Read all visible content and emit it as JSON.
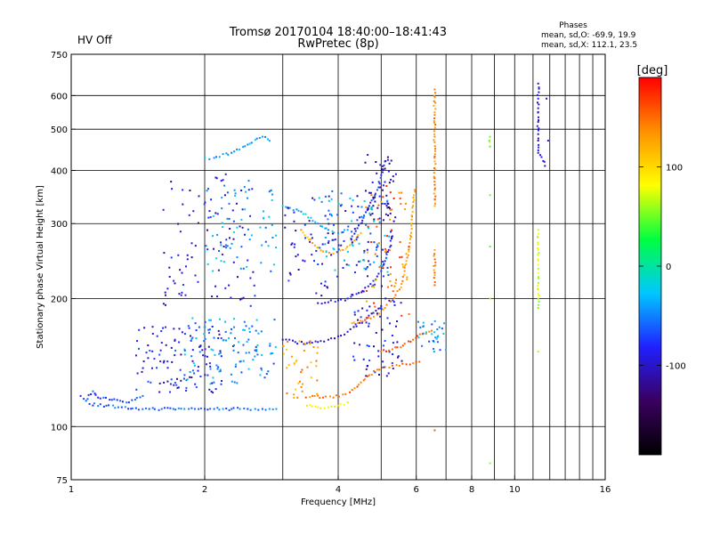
{
  "header": {
    "status": "HV Off",
    "status_color": "#d40000",
    "title": "Tromsø 20170104 18:40:00–18:41:43",
    "subtitle": "RwPretec (8p)",
    "phases": {
      "label": "Phases",
      "o_mode": "mean, sd,O: -69.9, 19.9",
      "x_mode": "mean, sd,X: 112.1, 23.5"
    }
  },
  "colorbar": {
    "unit": "[deg]",
    "ticks": [
      {
        "value": 100,
        "label": "100"
      },
      {
        "value": 0,
        "label": "0"
      },
      {
        "value": -100,
        "label": "-100"
      }
    ],
    "range": [
      -190,
      190
    ],
    "colormap": [
      "#000000",
      "#3a0060",
      "#2020ff",
      "#00c8ff",
      "#00ff40",
      "#ffff00",
      "#ff9000",
      "#ff0000"
    ]
  },
  "chart_data": {
    "type": "scatter",
    "xlabel": "Frequency [MHz]",
    "ylabel": "Stationary phase Virtual Height [km]",
    "xscale": "log",
    "yscale": "log",
    "xlim": [
      1,
      16
    ],
    "ylim": [
      75,
      750
    ],
    "x_ticks": [
      {
        "value": 1,
        "label": "1"
      },
      {
        "value": 2,
        "label": "2"
      },
      {
        "value": 4,
        "label": "4"
      },
      {
        "value": 6,
        "label": "6"
      },
      {
        "value": 8,
        "label": "8"
      },
      {
        "value": 10,
        "label": "10"
      },
      {
        "value": 16,
        "label": "16"
      }
    ],
    "y_ticks": [
      {
        "value": 75,
        "label": "75"
      },
      {
        "value": 100,
        "label": "100"
      },
      {
        "value": 200,
        "label": "200"
      },
      {
        "value": 300,
        "label": "300"
      },
      {
        "value": 400,
        "label": "400"
      },
      {
        "value": 500,
        "label": "500"
      },
      {
        "value": 600,
        "label": "600"
      },
      {
        "value": 750,
        "label": "750"
      }
    ],
    "grid_x": [
      2,
      3,
      4,
      5,
      6,
      7,
      8,
      9,
      10,
      11,
      12,
      13,
      14,
      15
    ],
    "grid_y": [
      100,
      200,
      300,
      400,
      500,
      600
    ],
    "grid": true,
    "traces": [
      {
        "name": "o-low-trace",
        "phase": -60,
        "points": [
          [
            1.1,
            113
          ],
          [
            1.2,
            112
          ],
          [
            1.3,
            111
          ],
          [
            1.4,
            110.5
          ],
          [
            1.5,
            110
          ],
          [
            1.6,
            110
          ],
          [
            1.7,
            110
          ],
          [
            1.8,
            110
          ],
          [
            1.9,
            110
          ],
          [
            2.0,
            110
          ],
          [
            2.1,
            110
          ],
          [
            2.2,
            110
          ],
          [
            2.3,
            110
          ],
          [
            2.4,
            110
          ],
          [
            2.5,
            110
          ],
          [
            2.6,
            110
          ],
          [
            2.7,
            110
          ],
          [
            2.8,
            110
          ],
          [
            2.9,
            110
          ]
        ]
      },
      {
        "name": "o-low-hook",
        "phase": -70,
        "points": [
          [
            1.05,
            118
          ],
          [
            1.08,
            115
          ],
          [
            1.12,
            121
          ],
          [
            1.15,
            117
          ],
          [
            1.25,
            116
          ],
          [
            1.35,
            114
          ],
          [
            1.45,
            118
          ]
        ]
      },
      {
        "name": "o-mid-trace",
        "phase": -100,
        "points": [
          [
            3.0,
            160
          ],
          [
            3.2,
            158
          ],
          [
            3.4,
            157
          ],
          [
            3.6,
            158
          ],
          [
            3.8,
            160
          ],
          [
            4.0,
            163
          ],
          [
            4.2,
            167
          ],
          [
            4.4,
            172
          ],
          [
            4.6,
            178
          ],
          [
            4.8,
            185
          ],
          [
            5.0,
            192
          ]
        ]
      },
      {
        "name": "o-f-trace",
        "phase": -90,
        "points": [
          [
            3.6,
            195
          ],
          [
            3.8,
            196
          ],
          [
            4.0,
            198
          ],
          [
            4.2,
            200
          ],
          [
            4.4,
            205
          ],
          [
            4.6,
            212
          ],
          [
            4.8,
            220
          ],
          [
            5.0,
            232
          ],
          [
            5.1,
            245
          ],
          [
            5.2,
            260
          ],
          [
            5.3,
            280
          ]
        ]
      },
      {
        "name": "o-upper-trace",
        "phase": -80,
        "points": [
          [
            4.3,
            280
          ],
          [
            4.5,
            300
          ],
          [
            4.7,
            330
          ],
          [
            4.9,
            360
          ],
          [
            5.0,
            390
          ],
          [
            5.1,
            420
          ]
        ]
      },
      {
        "name": "x-mid-trace",
        "phase": 150,
        "points": [
          [
            3.5,
            118
          ],
          [
            3.7,
            117
          ],
          [
            3.9,
            117
          ],
          [
            4.1,
            119
          ],
          [
            4.3,
            122
          ],
          [
            4.5,
            127
          ],
          [
            4.7,
            132
          ],
          [
            4.9,
            136
          ],
          [
            5.1,
            138
          ],
          [
            5.3,
            139
          ],
          [
            5.5,
            139
          ],
          [
            5.7,
            140
          ],
          [
            5.9,
            141
          ],
          [
            6.1,
            142
          ]
        ]
      },
      {
        "name": "x-f-trace",
        "phase": 130,
        "points": [
          [
            4.3,
            175
          ],
          [
            4.6,
            178
          ],
          [
            4.9,
            183
          ],
          [
            5.1,
            190
          ],
          [
            5.3,
            198
          ],
          [
            5.5,
            210
          ],
          [
            5.6,
            225
          ],
          [
            5.7,
            245
          ],
          [
            5.8,
            270
          ],
          [
            5.85,
            300
          ],
          [
            5.9,
            330
          ],
          [
            5.95,
            360
          ]
        ]
      },
      {
        "name": "x-late-trace",
        "phase": 160,
        "points": [
          [
            5.0,
            150
          ],
          [
            5.3,
            152
          ],
          [
            5.6,
            155
          ],
          [
            5.9,
            160
          ],
          [
            6.2,
            165
          ],
          [
            6.5,
            168
          ]
        ]
      },
      {
        "name": "x-upper-trace",
        "phase": 120,
        "points": [
          [
            3.3,
            290
          ],
          [
            3.5,
            270
          ],
          [
            3.7,
            258
          ],
          [
            3.9,
            255
          ],
          [
            4.1,
            260
          ],
          [
            4.3,
            270
          ],
          [
            4.5,
            285
          ]
        ]
      },
      {
        "name": "x-low-trace",
        "phase": 80,
        "points": [
          [
            3.4,
            112
          ],
          [
            3.6,
            111
          ],
          [
            3.8,
            111
          ],
          [
            4.0,
            112
          ],
          [
            4.2,
            114
          ]
        ]
      },
      {
        "name": "cyan-upper",
        "phase": -40,
        "points": [
          [
            2.0,
            430
          ],
          [
            2.05,
            425
          ],
          [
            2.1,
            428
          ],
          [
            2.3,
            440
          ],
          [
            2.5,
            460
          ],
          [
            2.7,
            480
          ],
          [
            2.8,
            470
          ]
        ]
      },
      {
        "name": "cyan-mid",
        "phase": -30,
        "points": [
          [
            3.0,
            330
          ],
          [
            3.3,
            320
          ],
          [
            3.6,
            300
          ],
          [
            3.8,
            290
          ],
          [
            4.0,
            285
          ],
          [
            4.2,
            290
          ]
        ]
      },
      {
        "name": "v-scatter-6",
        "phase": 140,
        "points": [
          [
            6.6,
            620
          ],
          [
            6.6,
            540
          ],
          [
            6.6,
            480
          ],
          [
            6.6,
            420
          ],
          [
            6.6,
            360
          ],
          [
            6.6,
            330
          ],
          [
            6.6,
            260
          ],
          [
            6.6,
            230
          ],
          [
            6.6,
            215
          ],
          [
            6.6,
            98
          ]
        ]
      },
      {
        "name": "v-scatter-8",
        "phase": 60,
        "points": [
          [
            8.8,
            480
          ],
          [
            8.8,
            455
          ],
          [
            8.8,
            350
          ],
          [
            8.8,
            265
          ],
          [
            8.8,
            200
          ],
          [
            8.8,
            82
          ]
        ]
      },
      {
        "name": "v-scatter-11",
        "phase": -100,
        "points": [
          [
            11.3,
            640
          ],
          [
            11.3,
            590
          ],
          [
            11.3,
            560
          ],
          [
            11.3,
            520
          ],
          [
            11.3,
            470
          ],
          [
            11.3,
            440
          ],
          [
            11.5,
            430
          ],
          [
            11.7,
            410
          ],
          [
            11.8,
            590
          ],
          [
            11.9,
            470
          ]
        ]
      },
      {
        "name": "v-scatter-11b",
        "phase": 70,
        "points": [
          [
            11.3,
            290
          ],
          [
            11.3,
            260
          ],
          [
            11.3,
            240
          ],
          [
            11.3,
            230
          ],
          [
            11.3,
            205
          ],
          [
            11.3,
            190
          ],
          [
            11.3,
            150
          ]
        ]
      }
    ],
    "clusters": [
      {
        "name": "cluster-a",
        "phase": -90,
        "x": [
          1.4,
          2.2
        ],
        "y": [
          120,
          175
        ],
        "count": 110
      },
      {
        "name": "cluster-b",
        "phase": -45,
        "x": [
          1.8,
          2.9
        ],
        "y": [
          125,
          180
        ],
        "count": 110
      },
      {
        "name": "cluster-c",
        "phase": -100,
        "x": [
          1.6,
          2.6
        ],
        "y": [
          190,
          400
        ],
        "count": 90
      },
      {
        "name": "cluster-d",
        "phase": -40,
        "x": [
          2.0,
          2.9
        ],
        "y": [
          230,
          380
        ],
        "count": 70
      },
      {
        "name": "cluster-e",
        "phase": -95,
        "x": [
          3.0,
          5.3
        ],
        "y": [
          200,
          350
        ],
        "count": 110
      },
      {
        "name": "cluster-f",
        "phase": -40,
        "x": [
          3.6,
          5.3
        ],
        "y": [
          230,
          360
        ],
        "count": 70
      },
      {
        "name": "cluster-g",
        "phase": 130,
        "x": [
          3.0,
          3.6
        ],
        "y": [
          115,
          160
        ],
        "count": 40
      },
      {
        "name": "cluster-h",
        "phase": -95,
        "x": [
          4.3,
          5.6
        ],
        "y": [
          130,
          200
        ],
        "count": 60
      },
      {
        "name": "cluster-i",
        "phase": -115,
        "x": [
          4.6,
          5.4
        ],
        "y": [
          300,
          440
        ],
        "count": 45
      },
      {
        "name": "cluster-j",
        "phase": 150,
        "x": [
          4.6,
          5.8
        ],
        "y": [
          180,
          370
        ],
        "count": 60
      },
      {
        "name": "cluster-k",
        "phase": -45,
        "x": [
          5.9,
          7.0
        ],
        "y": [
          150,
          180
        ],
        "count": 30
      }
    ]
  }
}
